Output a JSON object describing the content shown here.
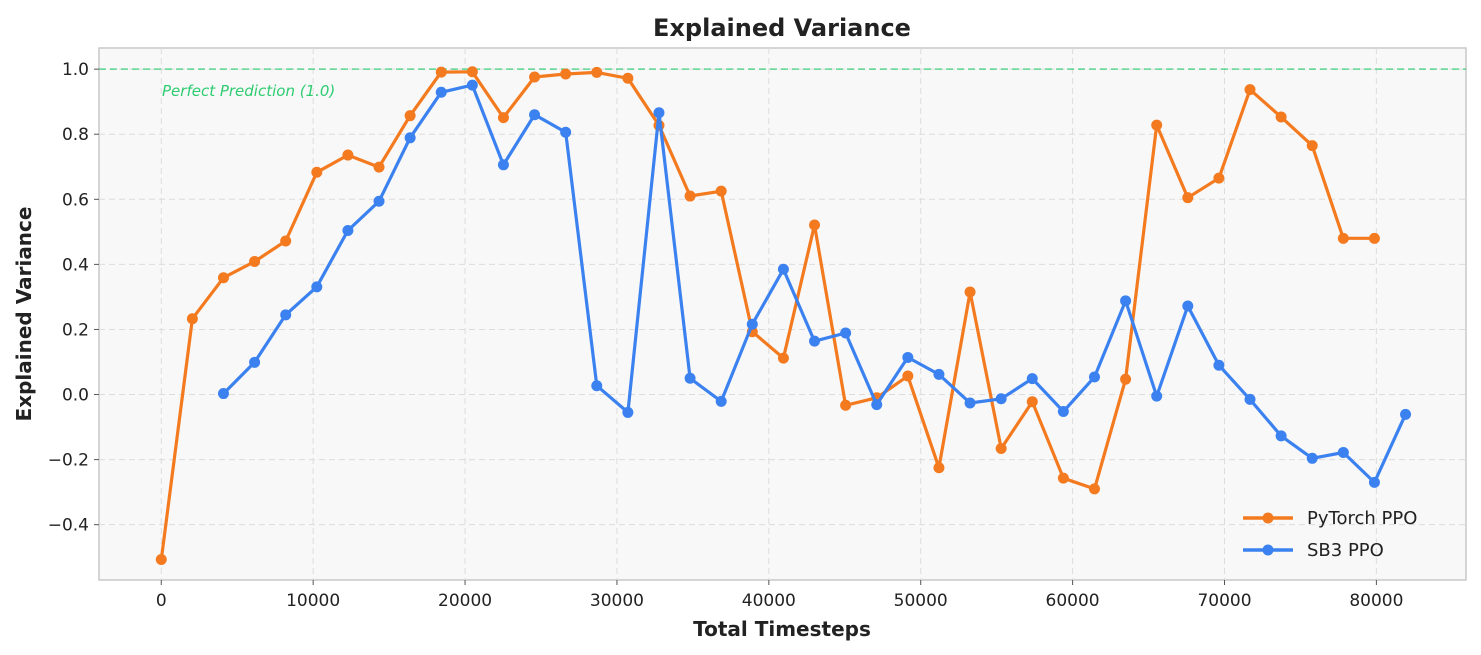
{
  "chart_data": {
    "type": "line",
    "title": "Explained Variance",
    "xlabel": "Total Timesteps",
    "ylabel": "Explained Variance",
    "xlim": [
      -4100,
      85900
    ],
    "ylim": [
      -0.57,
      1.065
    ],
    "x_ticks": [
      0,
      10000,
      20000,
      30000,
      40000,
      50000,
      60000,
      70000,
      80000
    ],
    "x_tick_labels": [
      "0",
      "10000",
      "20000",
      "30000",
      "40000",
      "50000",
      "60000",
      "70000",
      "80000"
    ],
    "y_ticks": [
      -0.4,
      -0.2,
      0.0,
      0.2,
      0.4,
      0.6,
      0.8,
      1.0
    ],
    "y_tick_labels": [
      "−0.4",
      "−0.2",
      "0.0",
      "0.2",
      "0.4",
      "0.6",
      "0.8",
      "1.0"
    ],
    "grid": true,
    "legend_position": "lower-right",
    "reference_line": {
      "y": 1.0,
      "label": "Perfect Prediction (1.0)",
      "color": "#2ecc71"
    },
    "series": [
      {
        "name": "PyTorch PPO",
        "color": "#f47a1f",
        "x": [
          0,
          2048,
          4096,
          6144,
          8192,
          10240,
          12288,
          14336,
          16384,
          18432,
          20480,
          22528,
          24576,
          26624,
          28672,
          30720,
          32768,
          34816,
          36864,
          38912,
          40960,
          43008,
          45056,
          47104,
          49152,
          51200,
          53248,
          55296,
          57344,
          59392,
          61440,
          63488,
          65536,
          67584,
          69632,
          71680,
          73728,
          75776,
          77824,
          79872
        ],
        "values": [
          -0.507,
          0.233,
          0.359,
          0.409,
          0.472,
          0.683,
          0.736,
          0.699,
          0.857,
          0.991,
          0.992,
          0.851,
          0.976,
          0.985,
          0.99,
          0.972,
          0.827,
          0.61,
          0.625,
          0.193,
          0.112,
          0.521,
          -0.033,
          -0.01,
          0.057,
          -0.225,
          0.315,
          -0.166,
          -0.022,
          -0.257,
          -0.29,
          0.047,
          0.828,
          0.605,
          0.665,
          0.937,
          0.853,
          0.765,
          0.48,
          0.48
        ]
      },
      {
        "name": "SB3 PPO",
        "color": "#3b82f0",
        "x": [
          4096,
          6144,
          8192,
          10240,
          12288,
          14336,
          16384,
          18432,
          20480,
          22528,
          24576,
          26624,
          28672,
          30720,
          32768,
          34816,
          36864,
          38912,
          40960,
          43008,
          45056,
          47104,
          49152,
          51200,
          53248,
          55296,
          57344,
          59392,
          61440,
          63488,
          65536,
          67584,
          69632,
          71680,
          73728,
          75776,
          77824,
          79872,
          81920
        ],
        "values": [
          0.003,
          0.099,
          0.245,
          0.331,
          0.504,
          0.594,
          0.789,
          0.929,
          0.951,
          0.706,
          0.86,
          0.806,
          0.027,
          -0.055,
          0.866,
          0.05,
          -0.021,
          0.216,
          0.385,
          0.164,
          0.189,
          -0.031,
          0.114,
          0.062,
          -0.026,
          -0.013,
          0.049,
          -0.052,
          0.054,
          0.288,
          -0.005,
          0.272,
          0.09,
          -0.015,
          -0.127,
          -0.196,
          -0.178,
          -0.27,
          -0.061
        ]
      }
    ]
  }
}
